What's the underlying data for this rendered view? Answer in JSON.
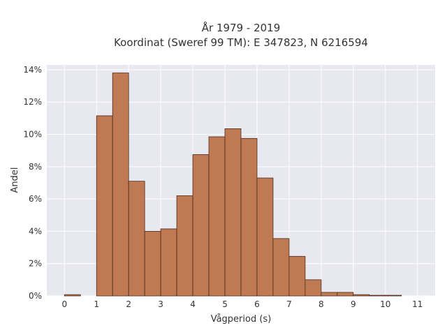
{
  "chart_data": {
    "type": "bar",
    "title_line1": "År 1979 - 2019",
    "title_line2": "Koordinat (Sweref 99 TM): E 347823, N 6216594",
    "xlabel": "Vågperiod (s)",
    "ylabel": "Andel",
    "bin_width": 0.5,
    "bins": [
      {
        "start": 0.0,
        "value": 0.08
      },
      {
        "start": 0.5,
        "value": 0.0
      },
      {
        "start": 1.0,
        "value": 11.15
      },
      {
        "start": 1.5,
        "value": 13.8
      },
      {
        "start": 2.0,
        "value": 7.1
      },
      {
        "start": 2.5,
        "value": 4.0
      },
      {
        "start": 3.0,
        "value": 4.15
      },
      {
        "start": 3.5,
        "value": 6.2
      },
      {
        "start": 4.0,
        "value": 8.75
      },
      {
        "start": 4.5,
        "value": 9.85
      },
      {
        "start": 5.0,
        "value": 10.35
      },
      {
        "start": 5.5,
        "value": 9.75
      },
      {
        "start": 6.0,
        "value": 7.3
      },
      {
        "start": 6.5,
        "value": 3.55
      },
      {
        "start": 7.0,
        "value": 2.45
      },
      {
        "start": 7.5,
        "value": 1.0
      },
      {
        "start": 8.0,
        "value": 0.22
      },
      {
        "start": 8.5,
        "value": 0.22
      },
      {
        "start": 9.0,
        "value": 0.08
      },
      {
        "start": 9.5,
        "value": 0.04
      },
      {
        "start": 10.0,
        "value": 0.04
      }
    ],
    "xlim": [
      -0.55,
      11.55
    ],
    "ylim": [
      0,
      14.3
    ],
    "xticks": [
      0,
      1,
      2,
      3,
      4,
      5,
      6,
      7,
      8,
      9,
      10,
      11
    ],
    "yticks": [
      0,
      2,
      4,
      6,
      8,
      10,
      12,
      14
    ],
    "ytick_suffix": "%",
    "grid": true,
    "colors": {
      "bar_fill": "#c07a53",
      "bar_edge": "#4a2a1a",
      "plot_bg": "#e8e8f0",
      "grid": "#ffffff"
    }
  }
}
